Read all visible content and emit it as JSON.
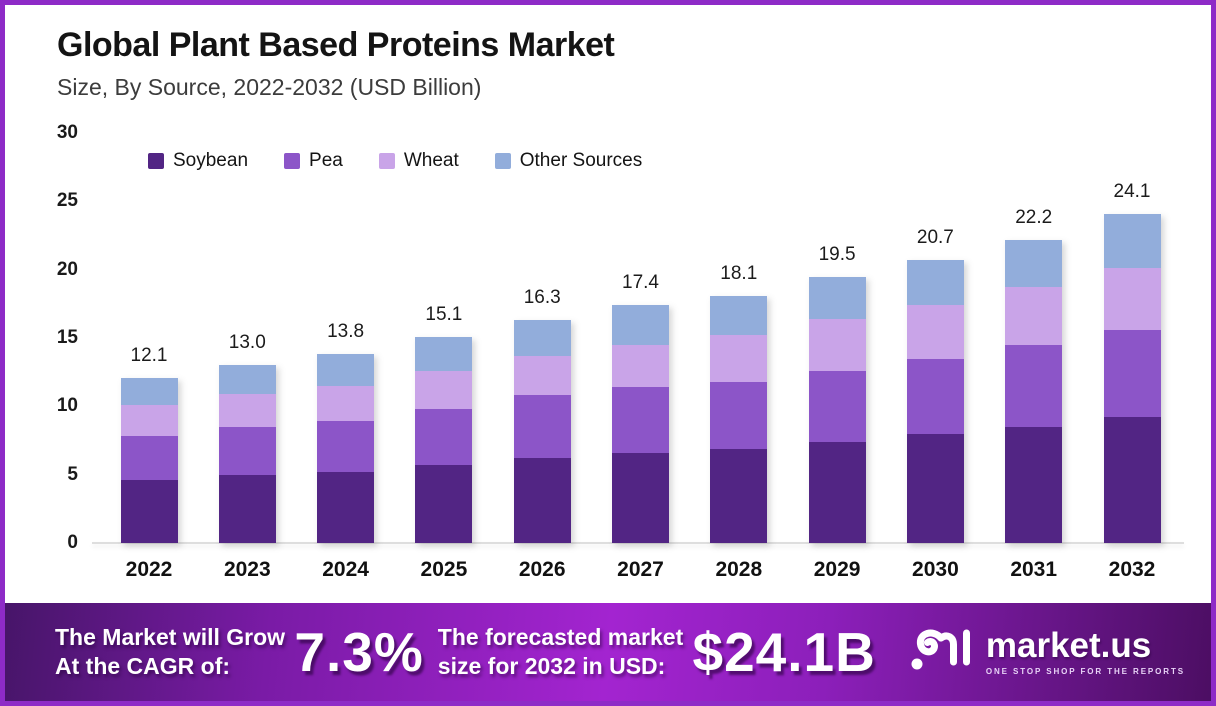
{
  "frame": {
    "border_color": "#8E2BC7",
    "background": "#FFFFFF"
  },
  "header": {
    "title": "Global Plant Based Proteins Market",
    "subtitle": "Size, By Source, 2022-2032 (USD Billion)"
  },
  "chart_data": {
    "type": "bar",
    "stacked": true,
    "title": "Global Plant Based Proteins Market Size, By Source, 2022-2032 (USD Billion)",
    "categories": [
      "2022",
      "2023",
      "2024",
      "2025",
      "2026",
      "2027",
      "2028",
      "2029",
      "2030",
      "2031",
      "2032"
    ],
    "series": [
      {
        "name": "Soybean",
        "color": "#522584",
        "values": [
          4.6,
          5.0,
          5.2,
          5.7,
          6.2,
          6.6,
          6.9,
          7.4,
          8.0,
          8.5,
          9.2
        ]
      },
      {
        "name": "Pea",
        "color": "#8C55C8",
        "values": [
          3.2,
          3.5,
          3.7,
          4.1,
          4.6,
          4.8,
          4.9,
          5.2,
          5.5,
          6.0,
          6.4
        ]
      },
      {
        "name": "Wheat",
        "color": "#C9A4E8",
        "values": [
          2.3,
          2.4,
          2.6,
          2.8,
          2.9,
          3.1,
          3.4,
          3.8,
          3.9,
          4.2,
          4.5
        ]
      },
      {
        "name": "Other Sources",
        "color": "#92ADDB",
        "values": [
          2.0,
          2.1,
          2.3,
          2.5,
          2.6,
          2.9,
          2.9,
          3.1,
          3.3,
          3.5,
          4.0
        ]
      }
    ],
    "totals": [
      "12.1",
      "13.0",
      "13.8",
      "15.1",
      "16.3",
      "17.4",
      "18.1",
      "19.5",
      "20.7",
      "22.2",
      "24.1"
    ],
    "ylabel": "",
    "xlabel": "",
    "ylim": [
      0,
      30
    ],
    "yticks": [
      0,
      5,
      10,
      15,
      20,
      25,
      30
    ],
    "grid": false,
    "legend_position": "top"
  },
  "banner": {
    "cagr_label_line1": "The Market will Grow",
    "cagr_label_line2": "At the CAGR of:",
    "cagr_value": "7.3%",
    "forecast_label_line1": "The forecasted market",
    "forecast_label_line2": "size for 2032 in USD:",
    "forecast_value": "$24.1B",
    "logo_text": "market.us",
    "logo_tagline": "ONE STOP SHOP FOR THE REPORTS",
    "gradient": [
      "#471569",
      "#A324D0",
      "#4C0E63"
    ]
  }
}
